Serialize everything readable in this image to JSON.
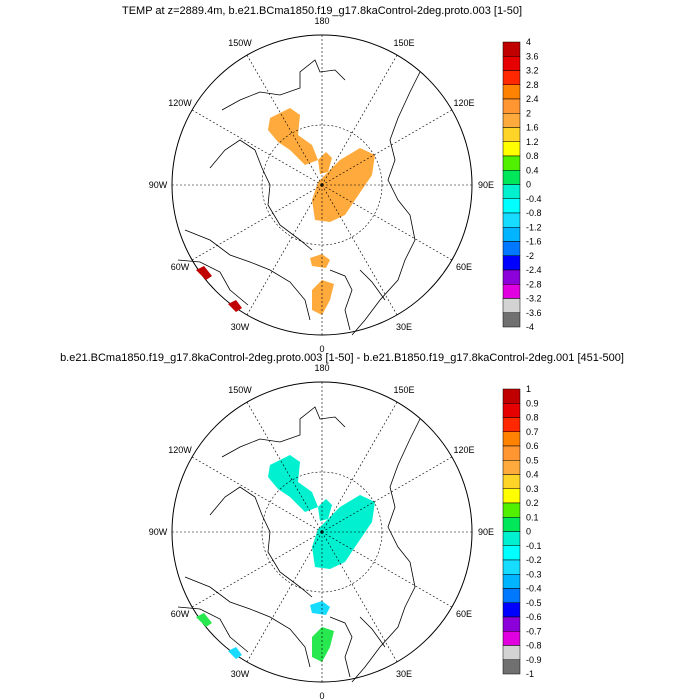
{
  "panels": [
    {
      "title": "TEMP at z=2889.4m, b.e21.BCma1850.f19_g17.8kaControl-2deg.proto.003 [1-50]",
      "colorbar_labels": [
        "4",
        "3.6",
        "3.2",
        "2.8",
        "2.4",
        "2",
        "1.6",
        "1.2",
        "0.8",
        "0.4",
        "0",
        "-0.4",
        "-0.8",
        "-1.2",
        "-1.6",
        "-2",
        "-2.4",
        "-2.8",
        "-3.2",
        "-3.6",
        "-4"
      ],
      "patch_colors": [
        "#ffaa3c",
        "#ffaa3c",
        "#ffaa3c",
        "#ffaa3c",
        "#ffaa3c",
        "#c00000",
        "#c00000"
      ]
    },
    {
      "title": "b.e21.BCma1850.f19_g17.8kaControl-2deg.proto.003 [1-50] - b.e21.B1850.f19_g17.8kaControl-2deg.001 [451-500]",
      "colorbar_labels": [
        "1",
        "0.9",
        "0.8",
        "0.7",
        "0.6",
        "0.5",
        "0.4",
        "0.3",
        "0.2",
        "0.1",
        "0",
        "-0.1",
        "-0.2",
        "-0.3",
        "-0.4",
        "-0.5",
        "-0.6",
        "-0.7",
        "-0.8",
        "-0.9",
        "-1"
      ],
      "patch_colors": [
        "#00f0d0",
        "#00f0d0",
        "#00f0d0",
        "#18dcff",
        "#28e850",
        "#28e850",
        "#18dcff"
      ]
    }
  ],
  "longitude_labels": [
    "0",
    "30E",
    "60E",
    "90E",
    "120E",
    "150E",
    "180",
    "150W",
    "120W",
    "90W",
    "60W",
    "30W"
  ],
  "colorbar_colors": [
    "#c00000",
    "#e60000",
    "#ff2800",
    "#ff8200",
    "#ff9632",
    "#ffaa3c",
    "#ffd428",
    "#ffff00",
    "#50f000",
    "#00e85a",
    "#00f0d0",
    "#00ffff",
    "#18dcff",
    "#00b4ff",
    "#0078ff",
    "#0000ff",
    "#8c00d9",
    "#e000e0",
    "#d3d3d3",
    "#707070"
  ]
}
